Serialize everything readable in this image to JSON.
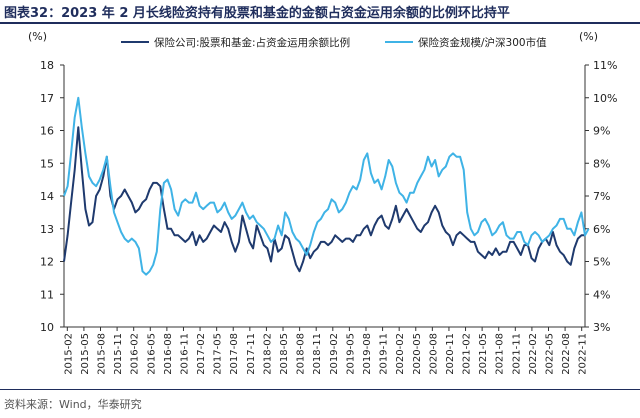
{
  "title": "图表32：2023 年 2 月长线险资持有股票和基金的金额占资金运用余额的比例环比持平",
  "source": "资料来源：Wind，华泰研究",
  "chart_data": {
    "type": "line",
    "left_axis": {
      "unit": "(%)",
      "ylim": [
        10,
        18
      ],
      "ticks": [
        10,
        11,
        12,
        13,
        14,
        15,
        16,
        17,
        18
      ]
    },
    "right_axis": {
      "unit": "(%)",
      "ylim": [
        3,
        11
      ],
      "ticks": [
        "3%",
        "4%",
        "5%",
        "6%",
        "7%",
        "8%",
        "9%",
        "10%",
        "11%"
      ]
    },
    "grid": false,
    "legend_position": "top",
    "x_tick_labels": [
      "2015-02",
      "2015-05",
      "2015-08",
      "2015-11",
      "2016-02",
      "2016-05",
      "2016-08",
      "2016-11",
      "2017-02",
      "2017-05",
      "2017-08",
      "2017-11",
      "2018-02",
      "2018-05",
      "2018-08",
      "2018-11",
      "2019-02",
      "2019-05",
      "2019-08",
      "2019-11",
      "2020-02",
      "2020-05",
      "2020-08",
      "2020-11",
      "2021-02",
      "2021-05",
      "2021-08",
      "2021-11",
      "2022-02",
      "2022-05",
      "2022-08",
      "2022-11"
    ],
    "series": [
      {
        "name": "保险公司:股票和基金:占资金运用余额比例",
        "axis": "left",
        "color": "#1f3a6e",
        "values": [
          12.0,
          12.8,
          13.8,
          14.8,
          16.1,
          14.8,
          13.6,
          13.1,
          13.2,
          14.0,
          14.2,
          14.6,
          15.2,
          14.0,
          13.6,
          13.9,
          14.0,
          14.2,
          14.0,
          13.8,
          13.5,
          13.6,
          13.8,
          13.9,
          14.2,
          14.4,
          14.4,
          14.3,
          13.6,
          13.0,
          13.0,
          12.8,
          12.8,
          12.7,
          12.6,
          12.7,
          12.9,
          12.5,
          12.8,
          12.6,
          12.7,
          12.9,
          13.1,
          13.0,
          12.9,
          13.2,
          13.0,
          12.6,
          12.3,
          12.6,
          13.4,
          13.0,
          12.6,
          12.4,
          13.1,
          12.8,
          12.5,
          12.4,
          12.0,
          12.7,
          12.3,
          12.4,
          12.8,
          12.7,
          12.3,
          11.9,
          11.7,
          12.0,
          12.4,
          12.1,
          12.3,
          12.4,
          12.6,
          12.6,
          12.5,
          12.6,
          12.8,
          12.7,
          12.6,
          12.7,
          12.7,
          12.6,
          12.8,
          12.8,
          13.0,
          13.1,
          12.8,
          13.1,
          13.3,
          13.4,
          13.1,
          13.0,
          13.3,
          13.7,
          13.2,
          13.4,
          13.6,
          13.4,
          13.2,
          13.0,
          12.9,
          13.1,
          13.2,
          13.5,
          13.7,
          13.5,
          13.1,
          12.9,
          12.8,
          12.5,
          12.8,
          12.9,
          12.8,
          12.7,
          12.6,
          12.6,
          12.3,
          12.2,
          12.1,
          12.3,
          12.2,
          12.4,
          12.2,
          12.3,
          12.3,
          12.6,
          12.6,
          12.4,
          12.2,
          12.5,
          12.5,
          12.1,
          12.0,
          12.4,
          12.6,
          12.7,
          12.5,
          12.9,
          12.5,
          12.3,
          12.2,
          12.0,
          11.9,
          12.4,
          12.7,
          12.8,
          12.8
        ]
      },
      {
        "name": "保险资金规模/沪深300市值",
        "axis": "right",
        "color": "#3fb3e6",
        "values": [
          7.0,
          7.3,
          8.3,
          9.4,
          10.0,
          9.1,
          8.3,
          7.6,
          7.4,
          7.3,
          7.5,
          7.8,
          8.2,
          7.3,
          6.5,
          6.2,
          5.9,
          5.7,
          5.6,
          5.7,
          5.6,
          5.4,
          4.7,
          4.6,
          4.7,
          4.9,
          5.3,
          6.6,
          7.4,
          7.5,
          7.2,
          6.6,
          6.4,
          6.8,
          6.9,
          6.8,
          6.8,
          7.1,
          6.7,
          6.6,
          6.7,
          6.8,
          6.8,
          6.5,
          6.6,
          6.8,
          6.5,
          6.3,
          6.4,
          6.6,
          6.8,
          6.5,
          6.3,
          6.4,
          6.2,
          6.1,
          6.0,
          5.8,
          5.6,
          5.7,
          6.1,
          5.8,
          6.5,
          6.3,
          5.9,
          5.7,
          5.6,
          5.4,
          5.2,
          5.5,
          5.9,
          6.2,
          6.3,
          6.5,
          6.6,
          6.9,
          6.8,
          6.5,
          6.6,
          6.8,
          7.1,
          7.3,
          7.2,
          7.5,
          8.1,
          8.3,
          7.7,
          7.4,
          7.5,
          7.2,
          7.6,
          8.1,
          7.9,
          7.4,
          7.1,
          7.0,
          6.8,
          7.1,
          7.1,
          7.4,
          7.6,
          7.8,
          8.2,
          7.9,
          8.1,
          7.6,
          7.8,
          7.9,
          8.2,
          8.3,
          8.2,
          8.2,
          7.8,
          6.5,
          6.0,
          5.8,
          5.9,
          6.2,
          6.3,
          6.1,
          5.8,
          5.9,
          6.1,
          6.2,
          5.8,
          5.7,
          5.7,
          5.9,
          5.9,
          5.6,
          5.5,
          5.8,
          5.9,
          5.8,
          5.6,
          5.7,
          5.8,
          6.0,
          6.1,
          6.3,
          6.3,
          6.0,
          6.0,
          5.8,
          6.2,
          6.5,
          5.8,
          6.0
        ]
      }
    ]
  }
}
